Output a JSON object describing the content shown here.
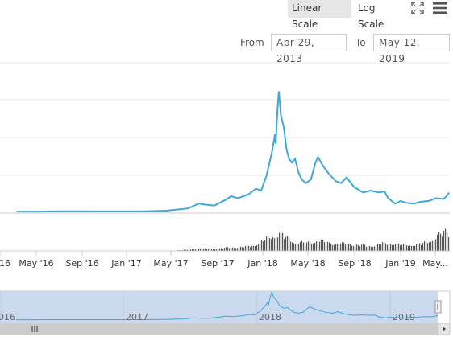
{
  "toolbar": {
    "linear_label": "Linear Scale",
    "log_label": "Log Scale",
    "fullscreen_icon": "fullscreen-icon",
    "menu_icon": "menu-icon"
  },
  "range": {
    "from_label": "From",
    "from_value": "Apr 29, 2013",
    "to_label": "To",
    "to_value": "May 12, 2019"
  },
  "colors": {
    "line": "#3fa9d6",
    "volume": "#555555",
    "navigator_fill": "#c5d5ec",
    "grid": "#e6e6e6"
  },
  "chart_data": {
    "type": "line",
    "x_axis_ticks": [
      "'16",
      "May '16",
      "Sep '16",
      "Jan '17",
      "May '17",
      "Sep '17",
      "Jan '18",
      "May '18",
      "Sep '18",
      "Jan '19",
      "May..."
    ],
    "series": [
      {
        "values": [
          [
            "2016-01-01",
            0.08
          ],
          [
            "2016-03-01",
            0.08
          ],
          [
            "2016-05-01",
            0.1
          ],
          [
            "2016-07-01",
            0.1
          ],
          [
            "2016-09-01",
            0.09
          ],
          [
            "2016-11-01",
            0.09
          ],
          [
            "2017-01-01",
            0.1
          ],
          [
            "2017-03-01",
            0.13
          ],
          [
            "2017-05-01",
            0.25
          ],
          [
            "2017-06-01",
            0.5
          ],
          [
            "2017-06-20",
            0.45
          ],
          [
            "2017-07-15",
            0.4
          ],
          [
            "2017-08-15",
            0.7
          ],
          [
            "2017-09-01",
            0.9
          ],
          [
            "2017-09-20",
            0.8
          ],
          [
            "2017-10-20",
            1.0
          ],
          [
            "2017-11-10",
            1.3
          ],
          [
            "2017-11-25",
            1.2
          ],
          [
            "2017-12-10",
            2.0
          ],
          [
            "2017-12-25",
            3.2
          ],
          [
            "2018-01-03",
            4.2
          ],
          [
            "2018-01-05",
            3.7
          ],
          [
            "2018-01-10",
            5.5
          ],
          [
            "2018-01-14",
            6.5
          ],
          [
            "2018-01-20",
            5.2
          ],
          [
            "2018-01-28",
            4.6
          ],
          [
            "2018-02-05",
            3.4
          ],
          [
            "2018-02-12",
            2.9
          ],
          [
            "2018-02-20",
            2.7
          ],
          [
            "2018-03-01",
            2.9
          ],
          [
            "2018-03-10",
            2.2
          ],
          [
            "2018-03-20",
            1.8
          ],
          [
            "2018-04-01",
            1.6
          ],
          [
            "2018-04-15",
            1.8
          ],
          [
            "2018-04-28",
            2.7
          ],
          [
            "2018-05-05",
            3.0
          ],
          [
            "2018-05-20",
            2.5
          ],
          [
            "2018-06-05",
            2.1
          ],
          [
            "2018-06-25",
            1.7
          ],
          [
            "2018-07-10",
            1.6
          ],
          [
            "2018-07-25",
            1.9
          ],
          [
            "2018-08-15",
            1.4
          ],
          [
            "2018-09-10",
            1.1
          ],
          [
            "2018-10-01",
            1.2
          ],
          [
            "2018-10-25",
            1.1
          ],
          [
            "2018-11-10",
            1.15
          ],
          [
            "2018-11-20",
            0.8
          ],
          [
            "2018-12-10",
            0.5
          ],
          [
            "2018-12-25",
            0.65
          ],
          [
            "2019-01-10",
            0.55
          ],
          [
            "2019-02-01",
            0.5
          ],
          [
            "2019-02-20",
            0.6
          ],
          [
            "2019-03-15",
            0.65
          ],
          [
            "2019-04-05",
            0.8
          ],
          [
            "2019-04-25",
            0.75
          ],
          [
            "2019-05-05",
            0.9
          ],
          [
            "2019-05-12",
            1.1
          ]
        ]
      }
    ],
    "volume_values": [
      [
        "2017-04-01",
        0.04
      ],
      [
        "2017-05-01",
        0.06
      ],
      [
        "2017-06-01",
        0.12
      ],
      [
        "2017-07-01",
        0.1
      ],
      [
        "2017-08-01",
        0.14
      ],
      [
        "2017-09-01",
        0.18
      ],
      [
        "2017-10-01",
        0.2
      ],
      [
        "2017-11-01",
        0.28
      ],
      [
        "2017-12-01",
        0.55
      ],
      [
        "2018-01-01",
        0.85
      ],
      [
        "2018-01-15",
        0.95
      ],
      [
        "2018-02-01",
        0.7
      ],
      [
        "2018-03-01",
        0.45
      ],
      [
        "2018-04-01",
        0.4
      ],
      [
        "2018-05-01",
        0.55
      ],
      [
        "2018-06-01",
        0.42
      ],
      [
        "2018-07-01",
        0.38
      ],
      [
        "2018-08-01",
        0.35
      ],
      [
        "2018-09-01",
        0.3
      ],
      [
        "2018-10-01",
        0.25
      ],
      [
        "2018-11-01",
        0.38
      ],
      [
        "2018-12-01",
        0.4
      ],
      [
        "2019-01-01",
        0.3
      ],
      [
        "2019-02-01",
        0.32
      ],
      [
        "2019-03-01",
        0.4
      ],
      [
        "2019-04-01",
        0.7
      ],
      [
        "2019-05-01",
        1.0
      ],
      [
        "2019-05-12",
        0.9
      ]
    ],
    "navigator_ticks": [
      "016",
      "2017",
      "2018",
      "2019"
    ],
    "grid": true,
    "legend": "none"
  }
}
